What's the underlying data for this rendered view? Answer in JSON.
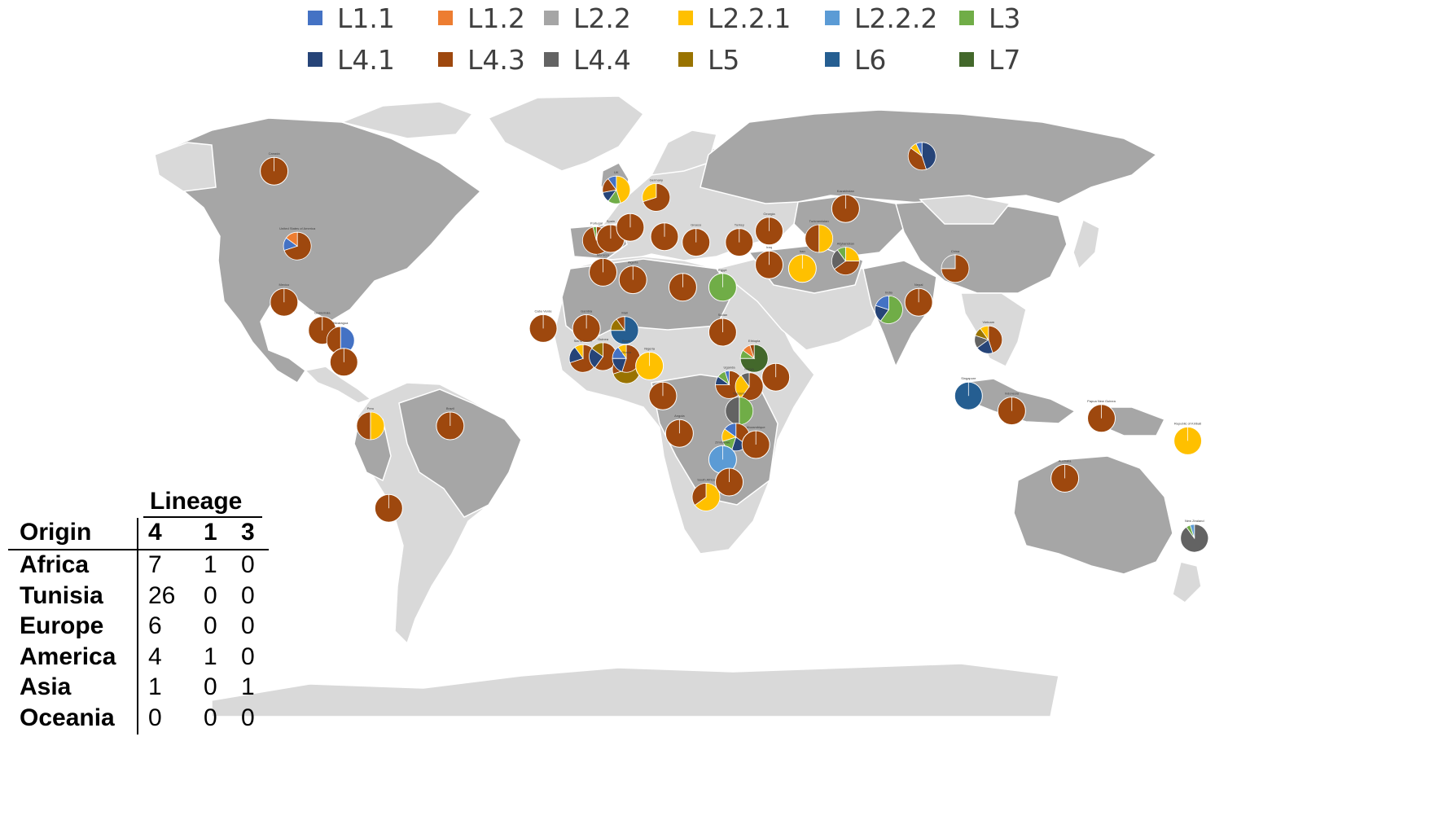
{
  "colors": {
    "ocean": "#ffffff",
    "land_dark": "#a6a6a6",
    "land_light": "#d9d9d9",
    "border": "#ffffff"
  },
  "legend": [
    {
      "label": "L1.1",
      "color": "#4472c4"
    },
    {
      "label": "L1.2",
      "color": "#ed7d31"
    },
    {
      "label": "L2.2",
      "color": "#a5a5a5"
    },
    {
      "label": "L2.2.1",
      "color": "#ffc000"
    },
    {
      "label": "L2.2.2",
      "color": "#5b9bd5"
    },
    {
      "label": "L3",
      "color": "#70ad47"
    },
    {
      "label": "L4.1",
      "color": "#264478"
    },
    {
      "label": "L4.3",
      "color": "#9e480e"
    },
    {
      "label": "L4.4",
      "color": "#636363"
    },
    {
      "label": "L5",
      "color": "#997300"
    },
    {
      "label": "L6",
      "color": "#255e91"
    },
    {
      "label": "L7",
      "color": "#43682b"
    }
  ],
  "lineage_table": {
    "title": "Lineage",
    "origin_header": "Origin",
    "columns": [
      "4",
      "1",
      "3"
    ],
    "rows": [
      {
        "origin": "Africa",
        "values": [
          "7",
          "1",
          "0"
        ]
      },
      {
        "origin": "Tunisia",
        "values": [
          "26",
          "0",
          "0"
        ]
      },
      {
        "origin": "Europe",
        "values": [
          "6",
          "0",
          "0"
        ]
      },
      {
        "origin": "America",
        "values": [
          "4",
          "1",
          "0"
        ]
      },
      {
        "origin": "Asia",
        "values": [
          "1",
          "0",
          "1"
        ]
      },
      {
        "origin": "Oceania",
        "values": [
          "0",
          "0",
          "0"
        ]
      }
    ]
  },
  "countries": [
    {
      "id": "canada",
      "lon": -105,
      "lat": 58,
      "label": "Canada",
      "slices": [
        [
          "L4.3",
          100
        ]
      ]
    },
    {
      "id": "usa",
      "lon": -98,
      "lat": 38,
      "label": "United States of America",
      "slices": [
        [
          "L4.3",
          70
        ],
        [
          "L1.1",
          15
        ],
        [
          "L1.2",
          15
        ]
      ]
    },
    {
      "id": "mexico",
      "lon": -102,
      "lat": 23,
      "label": "Mexico",
      "slices": [
        [
          "L4.3",
          100
        ]
      ]
    },
    {
      "id": "guatemala",
      "lon": -90.5,
      "lat": 15.5,
      "label": "Guatemala",
      "slices": [
        [
          "L4.3",
          100
        ]
      ]
    },
    {
      "id": "nicaragua",
      "lon": -85,
      "lat": 12.8,
      "label": "Nicaragua",
      "slices": [
        [
          "L1.1",
          50
        ],
        [
          "L4.3",
          50
        ]
      ]
    },
    {
      "id": "costa-rica",
      "lon": -84,
      "lat": 7,
      "label": "",
      "slices": [
        [
          "L4.3",
          100
        ]
      ]
    },
    {
      "id": "peru",
      "lon": -76,
      "lat": -10,
      "label": "Peru",
      "slices": [
        [
          "L2.2.1",
          50
        ],
        [
          "L4.3",
          50
        ]
      ]
    },
    {
      "id": "brazil",
      "lon": -52,
      "lat": -10,
      "label": "Brazil",
      "slices": [
        [
          "L4.3",
          100
        ]
      ]
    },
    {
      "id": "chile",
      "lon": -70.5,
      "lat": -32,
      "label": "",
      "slices": [
        [
          "L4.3",
          100
        ]
      ]
    },
    {
      "id": "uk",
      "lon": -2,
      "lat": 53,
      "label": "UK",
      "slices": [
        [
          "L2.2.1",
          45
        ],
        [
          "L3",
          15
        ],
        [
          "L4.1",
          12
        ],
        [
          "L4.3",
          18
        ],
        [
          "L1.1",
          10
        ]
      ]
    },
    {
      "id": "germany",
      "lon": 10,
      "lat": 51,
      "label": "Germany",
      "slices": [
        [
          "L4.3",
          70
        ],
        [
          "L2.2.1",
          30
        ]
      ]
    },
    {
      "id": "portugal",
      "lon": -8,
      "lat": 39.5,
      "label": "Portugal",
      "slices": [
        [
          "L4.3",
          96
        ],
        [
          "L3",
          4
        ]
      ]
    },
    {
      "id": "spain",
      "lon": -3.7,
      "lat": 40,
      "label": "Spain",
      "slices": [
        [
          "L4.3",
          100
        ]
      ]
    },
    {
      "id": "france",
      "lon": 2.2,
      "lat": 43,
      "label": "",
      "slices": [
        [
          "L4.3",
          100
        ]
      ]
    },
    {
      "id": "greece",
      "lon": 22,
      "lat": 39,
      "label": "Greece",
      "slices": [
        [
          "L4.3",
          100
        ]
      ]
    },
    {
      "id": "turkey",
      "lon": 35,
      "lat": 39,
      "label": "Turkey",
      "slices": [
        [
          "L4.3",
          100
        ]
      ]
    },
    {
      "id": "georgia",
      "lon": 44,
      "lat": 42,
      "label": "Georgia",
      "slices": [
        [
          "L4.3",
          100
        ]
      ]
    },
    {
      "id": "kazakhstan",
      "lon": 67,
      "lat": 48,
      "label": "Kazakhstan",
      "slices": [
        [
          "L4.3",
          100
        ]
      ]
    },
    {
      "id": "russia",
      "lon": 90,
      "lat": 62,
      "label": "",
      "slices": [
        [
          "L4.1",
          45
        ],
        [
          "L4.3",
          40
        ],
        [
          "L2.2.1",
          8
        ],
        [
          "L1.1",
          7
        ]
      ]
    },
    {
      "id": "turkmenistan",
      "lon": 59,
      "lat": 40,
      "label": "Turkmenistan",
      "slices": [
        [
          "L2.2.1",
          50
        ],
        [
          "L4.3",
          50
        ]
      ]
    },
    {
      "id": "afghanistan",
      "lon": 67,
      "lat": 34,
      "label": "Afghanistan",
      "slices": [
        [
          "L2.2.1",
          25
        ],
        [
          "L4.3",
          40
        ],
        [
          "L4.4",
          25
        ],
        [
          "L3",
          10
        ]
      ]
    },
    {
      "id": "iran",
      "lon": 54,
      "lat": 32,
      "label": "Iran",
      "slices": [
        [
          "L2.2.1",
          100
        ]
      ]
    },
    {
      "id": "iraq",
      "lon": 44,
      "lat": 33,
      "label": "Iraq",
      "slices": [
        [
          "L4.3",
          100
        ]
      ]
    },
    {
      "id": "italy",
      "lon": 12.5,
      "lat": 40.5,
      "label": "",
      "slices": [
        [
          "L4.3",
          100
        ]
      ]
    },
    {
      "id": "morocco",
      "lon": -6,
      "lat": 31,
      "label": "Morocco",
      "slices": [
        [
          "L4.3",
          100
        ]
      ]
    },
    {
      "id": "algeria",
      "lon": 3,
      "lat": 29,
      "label": "Algeria",
      "slices": [
        [
          "L4.3",
          100
        ]
      ]
    },
    {
      "id": "libya",
      "lon": 18,
      "lat": 27,
      "label": "",
      "slices": [
        [
          "L4.3",
          100
        ]
      ]
    },
    {
      "id": "egypt",
      "lon": 30,
      "lat": 27,
      "label": "Egypt",
      "slices": [
        [
          "L3",
          100
        ]
      ]
    },
    {
      "id": "cape-verde",
      "lon": -24,
      "lat": 16,
      "label": "Cabo Verde",
      "slices": [
        [
          "L4.3",
          100
        ]
      ]
    },
    {
      "id": "gambia",
      "lon": -11,
      "lat": 16,
      "label": "Gambia",
      "slices": [
        [
          "L4.3",
          100
        ]
      ]
    },
    {
      "id": "mali",
      "lon": 0.5,
      "lat": 15.5,
      "label": "Mali",
      "slices": [
        [
          "L6",
          75
        ],
        [
          "L5",
          15
        ],
        [
          "L4.3",
          10
        ]
      ]
    },
    {
      "id": "sudan",
      "lon": 30,
      "lat": 15,
      "label": "Sudan",
      "slices": [
        [
          "L4.3",
          100
        ]
      ]
    },
    {
      "id": "ethiopia",
      "lon": 39.5,
      "lat": 8,
      "label": "Ethiopia",
      "slices": [
        [
          "L7",
          75
        ],
        [
          "L3",
          10
        ],
        [
          "L1.2",
          10
        ],
        [
          "L4.3",
          5
        ]
      ]
    },
    {
      "id": "somalia",
      "lon": 46,
      "lat": 3,
      "label": "",
      "slices": [
        [
          "L4.3",
          100
        ]
      ]
    },
    {
      "id": "sierra-leone",
      "lon": -12,
      "lat": 8,
      "label": "Sierra Leone",
      "slices": [
        [
          "L4.3",
          70
        ],
        [
          "L4.1",
          20
        ],
        [
          "L2.2.1",
          10
        ]
      ]
    },
    {
      "id": "guinea",
      "lon": -6,
      "lat": 8.5,
      "label": "Guinea",
      "slices": [
        [
          "L4.3",
          60
        ],
        [
          "L4.1",
          25
        ],
        [
          "L5",
          15
        ]
      ]
    },
    {
      "id": "ghana",
      "lon": 1,
      "lat": 5,
      "label": "Ghana",
      "slices": [
        [
          "L5",
          70
        ],
        [
          "L4.3",
          15
        ],
        [
          "L1.1",
          15
        ]
      ]
    },
    {
      "id": "benin",
      "lon": 1,
      "lat": 8,
      "label": "Benin",
      "slices": [
        [
          "L4.3",
          55
        ],
        [
          "L4.1",
          20
        ],
        [
          "L1.1",
          15
        ],
        [
          "L2.2.1",
          10
        ]
      ]
    },
    {
      "id": "nigeria",
      "lon": 8,
      "lat": 6,
      "label": "Nigeria",
      "slices": [
        [
          "L2.2.1",
          100
        ]
      ]
    },
    {
      "id": "cameroon",
      "lon": 12,
      "lat": -2,
      "label": "",
      "slices": [
        [
          "L4.3",
          100
        ]
      ]
    },
    {
      "id": "uganda",
      "lon": 32,
      "lat": 1,
      "label": "Uganda",
      "slices": [
        [
          "L4.3",
          75
        ],
        [
          "L4.1",
          10
        ],
        [
          "L3",
          10
        ],
        [
          "L1.1",
          5
        ]
      ]
    },
    {
      "id": "kenya",
      "lon": 38,
      "lat": 0.5,
      "label": "Kenya",
      "slices": [
        [
          "L4.3",
          60
        ],
        [
          "L2.2.1",
          30
        ],
        [
          "L4.4",
          10
        ]
      ]
    },
    {
      "id": "tanzania",
      "lon": 35,
      "lat": -6,
      "label": "Tanzania",
      "slices": [
        [
          "L3",
          50
        ],
        [
          "L4.4",
          50
        ]
      ]
    },
    {
      "id": "angola",
      "lon": 17,
      "lat": -12,
      "label": "Angola",
      "slices": [
        [
          "L4.3",
          100
        ]
      ]
    },
    {
      "id": "malawi",
      "lon": 34,
      "lat": -13,
      "label": "",
      "slices": [
        [
          "L4.3",
          35
        ],
        [
          "L4.1",
          20
        ],
        [
          "L3",
          15
        ],
        [
          "L2.2.1",
          15
        ],
        [
          "L1.1",
          15
        ]
      ]
    },
    {
      "id": "mozambique",
      "lon": 40,
      "lat": -15,
      "label": "Mozambique",
      "slices": [
        [
          "L4.3",
          100
        ]
      ]
    },
    {
      "id": "zimbabwe",
      "lon": 30,
      "lat": -19,
      "label": "Zimbabwe",
      "slices": [
        [
          "L2.2.2",
          100
        ]
      ]
    },
    {
      "id": "south-africa",
      "lon": 25,
      "lat": -29,
      "label": "South Africa",
      "slices": [
        [
          "L2.2.1",
          65
        ],
        [
          "L4.3",
          35
        ]
      ]
    },
    {
      "id": "eswatini",
      "lon": 32,
      "lat": -25,
      "label": "",
      "slices": [
        [
          "L4.3",
          100
        ]
      ]
    },
    {
      "id": "india",
      "lon": 80,
      "lat": 21,
      "label": "India",
      "slices": [
        [
          "L3",
          60
        ],
        [
          "L4.1",
          20
        ],
        [
          "L1.1",
          20
        ]
      ]
    },
    {
      "id": "nepal",
      "lon": 89,
      "lat": 23,
      "label": "Nepal",
      "slices": [
        [
          "L4.3",
          100
        ]
      ]
    },
    {
      "id": "china",
      "lon": 100,
      "lat": 32,
      "label": "China",
      "slices": [
        [
          "L4.3",
          75
        ],
        [
          "L2.2",
          25
        ]
      ]
    },
    {
      "id": "vietnam",
      "lon": 110,
      "lat": 13,
      "label": "Vietnam",
      "slices": [
        [
          "L4.3",
          45
        ],
        [
          "L4.1",
          20
        ],
        [
          "L4.4",
          15
        ],
        [
          "L5",
          10
        ],
        [
          "L2.2.1",
          10
        ]
      ]
    },
    {
      "id": "singapore",
      "lon": 104,
      "lat": -2,
      "label": "Singapore",
      "slices": [
        [
          "L6",
          100
        ]
      ]
    },
    {
      "id": "indonesia",
      "lon": 117,
      "lat": -6,
      "label": "Indonesia",
      "slices": [
        [
          "L4.3",
          100
        ]
      ]
    },
    {
      "id": "png",
      "lon": 144,
      "lat": -8,
      "label": "Papua New Guinea",
      "slices": [
        [
          "L4.3",
          100
        ]
      ]
    },
    {
      "id": "australia",
      "lon": 133,
      "lat": -24,
      "label": "Australia",
      "slices": [
        [
          "L4.3",
          100
        ]
      ]
    },
    {
      "id": "fiji",
      "lon": 170,
      "lat": -14,
      "label": "Republic of Kiribati",
      "slices": [
        [
          "L2.2.1",
          100
        ]
      ]
    },
    {
      "id": "new-zealand",
      "lon": 172,
      "lat": -40,
      "label": "New Zealand",
      "slices": [
        [
          "L4.4",
          90
        ],
        [
          "L3",
          5
        ],
        [
          "L2.2.2",
          5
        ]
      ]
    }
  ]
}
